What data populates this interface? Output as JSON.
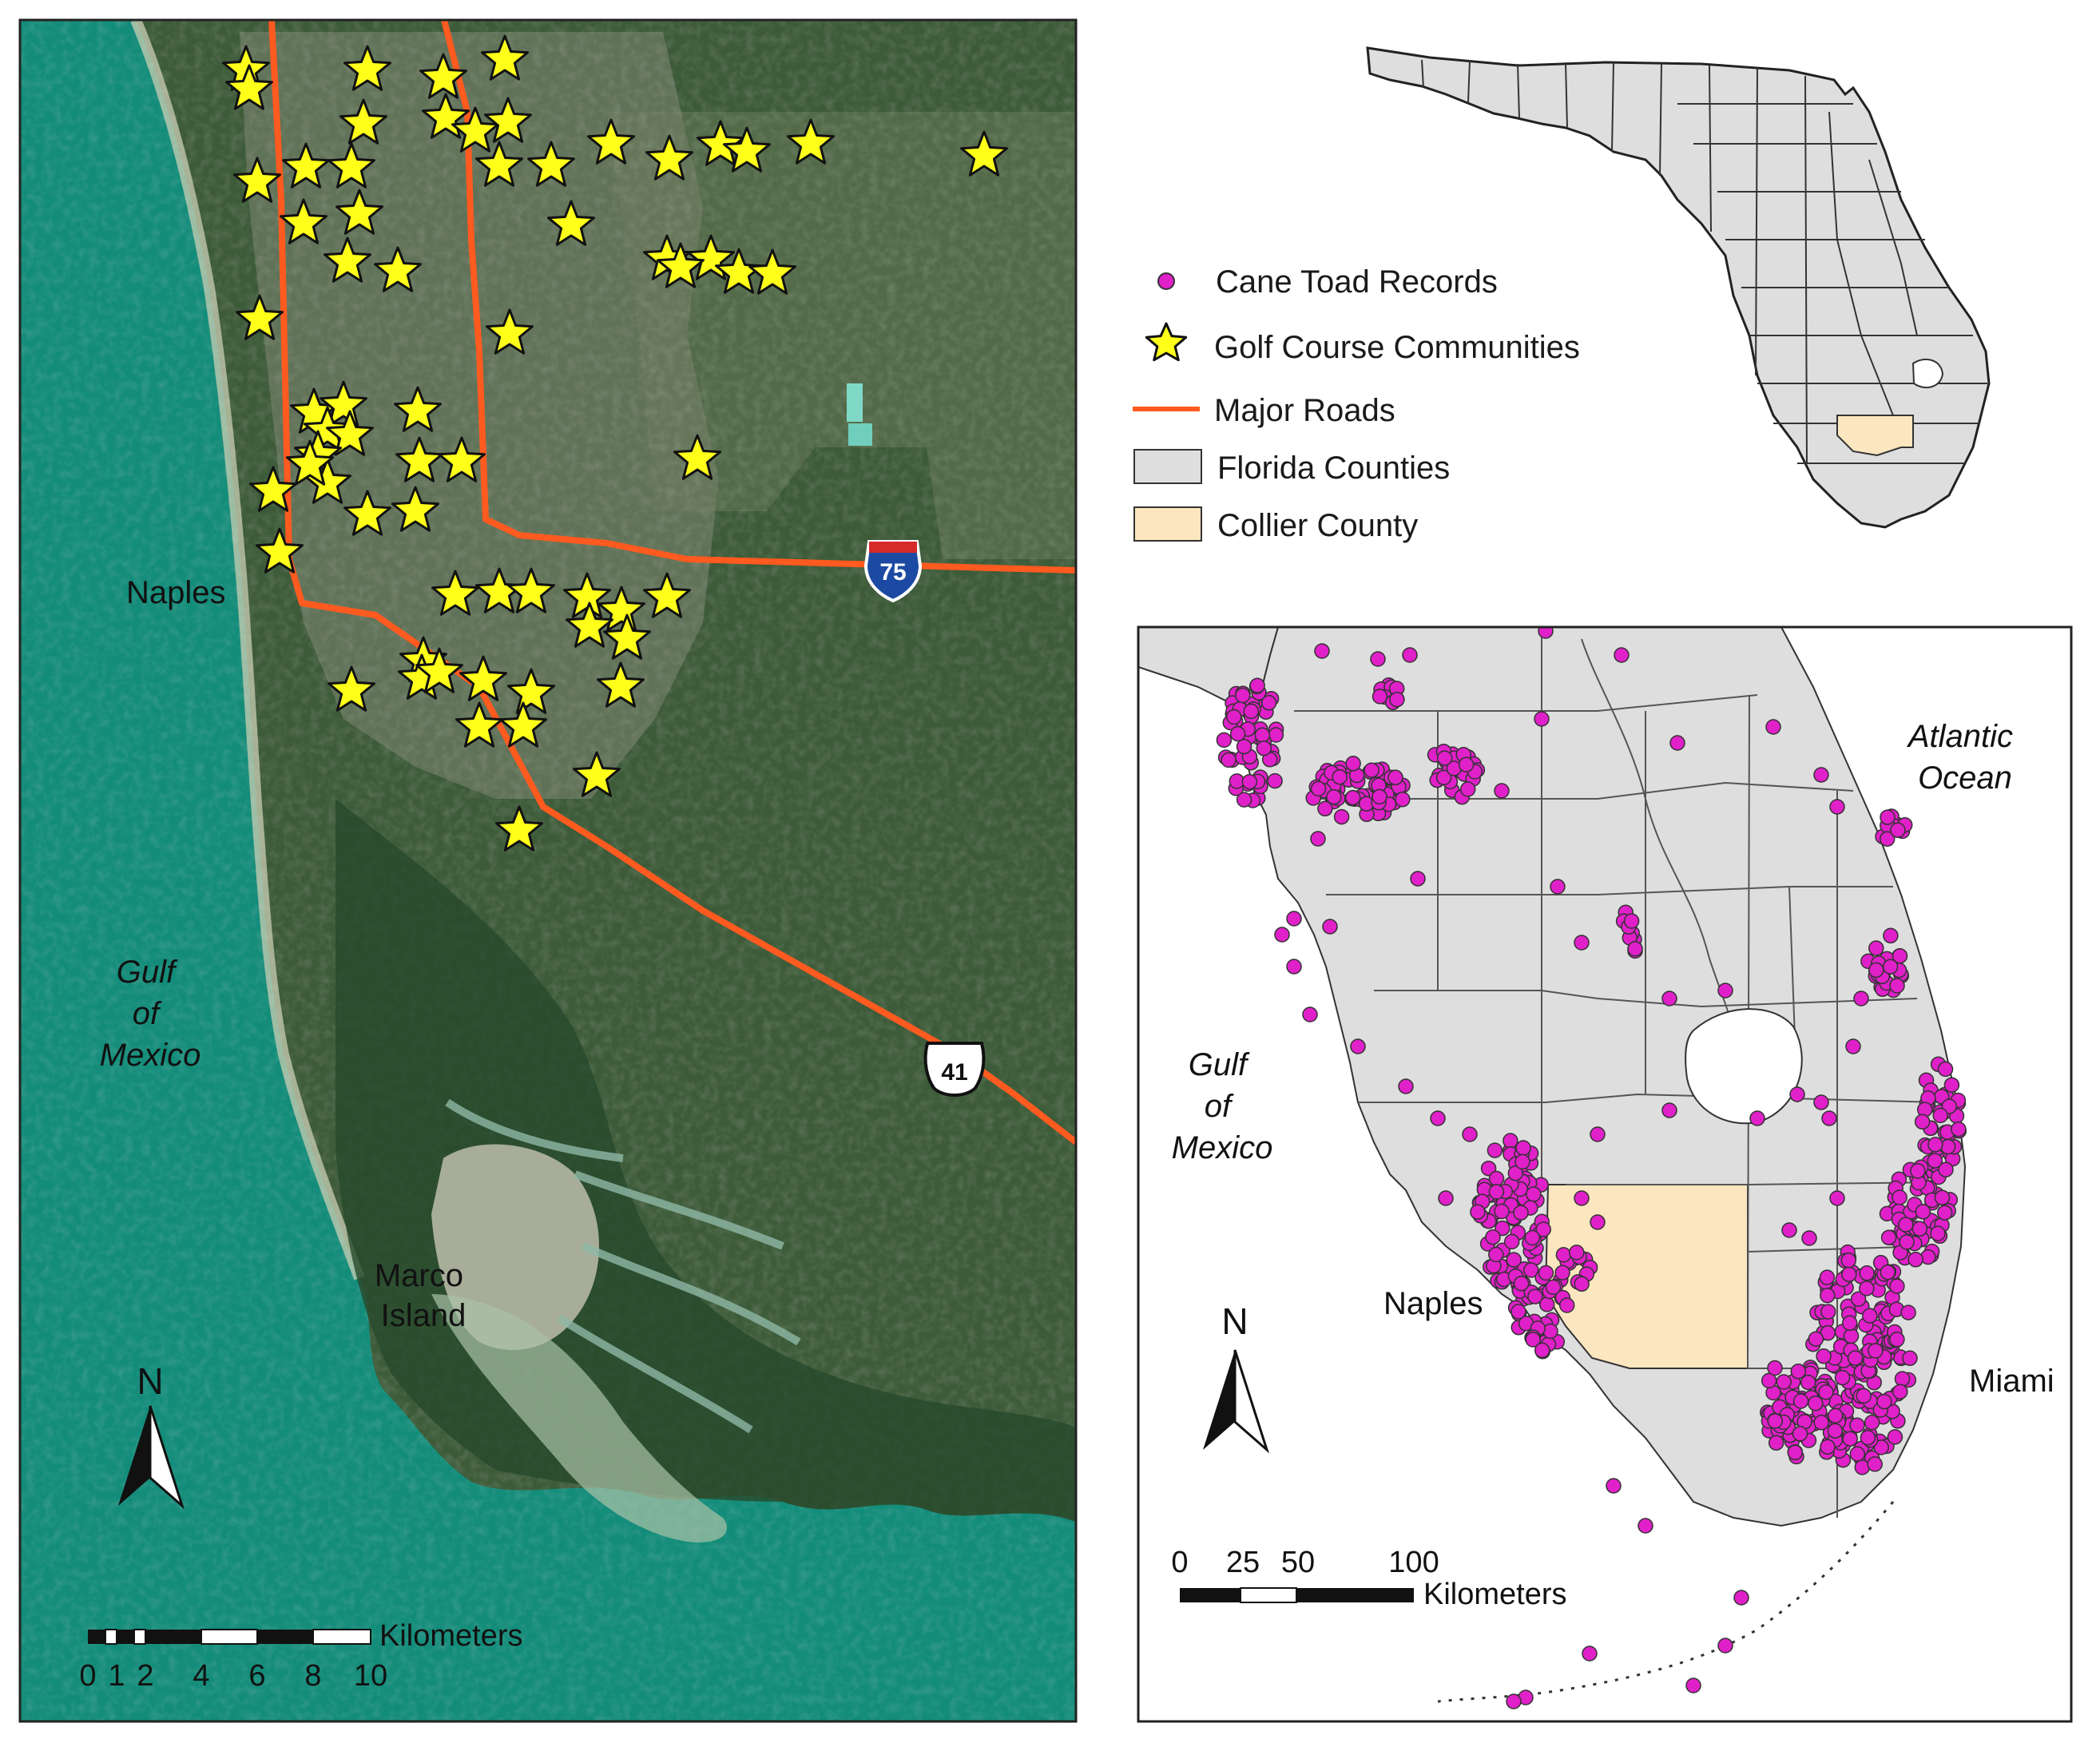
{
  "satellite_map": {
    "places": {
      "naples": "Naples",
      "marco_island": [
        "Marco",
        "Island"
      ],
      "gulf": [
        "Gulf",
        "of",
        "Mexico"
      ]
    },
    "road_shields": {
      "interstate": "75",
      "us_highway": "41"
    },
    "north_label": "N",
    "scale": {
      "unit": "Kilometers",
      "ticks": [
        "0",
        "1",
        "2",
        "4",
        "6",
        "8",
        "10"
      ]
    },
    "golf_course_count": 66
  },
  "legend": {
    "items": [
      {
        "label": "Cane Toad Records",
        "symbol": "magenta-circle",
        "color": "#e020c8"
      },
      {
        "label": "Golf Course Communities",
        "symbol": "yellow-star",
        "color": "#ffff1a"
      },
      {
        "label": "Major Roads",
        "symbol": "orange-line",
        "color": "#ff5a1f"
      },
      {
        "label": "Florida Counties",
        "symbol": "gray-box",
        "color": "#dedede"
      },
      {
        "label": "Collier County",
        "symbol": "tan-box",
        "color": "#fbe6bf"
      }
    ]
  },
  "south_florida_map": {
    "places": {
      "atlantic": [
        "Atlantic",
        "Ocean"
      ],
      "gulf": [
        "Gulf",
        "of",
        "Mexico"
      ],
      "naples": "Naples",
      "miami": "Miami"
    },
    "north_label": "N",
    "scale": {
      "unit": "Kilometers",
      "ticks": [
        "0",
        "25",
        "50",
        "100"
      ]
    }
  },
  "colors": {
    "sea": "#138c7a",
    "land": "#3b5a38",
    "road": "#ff5a1f",
    "county": "#dedede",
    "collier": "#fbe6bf",
    "toad": "#e020c8",
    "star": "#ffff1a"
  }
}
